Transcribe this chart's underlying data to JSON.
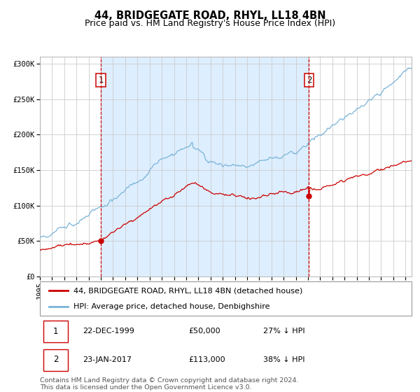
{
  "title": "44, BRIDGEGATE ROAD, RHYL, LL18 4BN",
  "subtitle": "Price paid vs. HM Land Registry's House Price Index (HPI)",
  "hpi_label": "HPI: Average price, detached house, Denbighshire",
  "property_label": "44, BRIDGEGATE ROAD, RHYL, LL18 4BN (detached house)",
  "ylabel_ticks": [
    "£0",
    "£50K",
    "£100K",
    "£150K",
    "£200K",
    "£250K",
    "£300K"
  ],
  "ytick_vals": [
    0,
    50000,
    100000,
    150000,
    200000,
    250000,
    300000
  ],
  "ylim": [
    0,
    310000
  ],
  "xlim_start": 1995.0,
  "xlim_end": 2025.5,
  "sale1_date": 2000.0,
  "sale1_price": 50000,
  "sale2_date": 2017.08,
  "sale2_price": 113000,
  "hpi_color": "#7ab4d8",
  "property_color": "#cc0000",
  "vline_color": "#cc0000",
  "shade_color": "#ddeeff",
  "grid_color": "#cccccc",
  "bg_color": "#ffffff",
  "footnote": "Contains HM Land Registry data © Crown copyright and database right 2024.\nThis data is licensed under the Open Government Licence v3.0.",
  "title_fontsize": 10.5,
  "subtitle_fontsize": 9,
  "tick_fontsize": 7.5,
  "legend_fontsize": 8,
  "annotation_fontsize": 8
}
